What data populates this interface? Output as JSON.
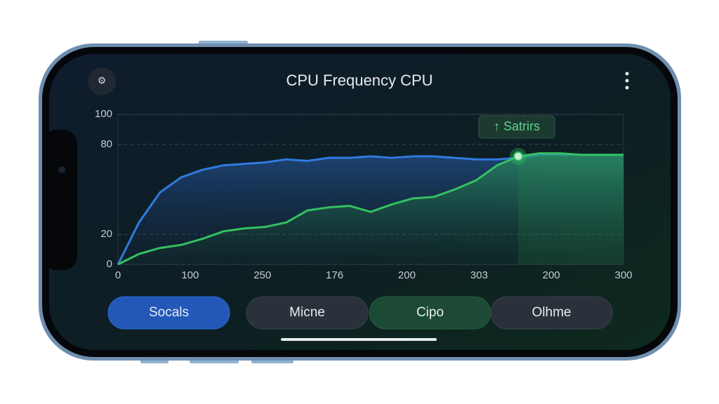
{
  "title": "CPU Frequency CPU",
  "badge": "↑ Satrirs",
  "tabs": [
    "Socals",
    "Micne",
    "Cipo",
    "Olhme"
  ],
  "chart_data": {
    "type": "line",
    "x_tick_labels": [
      "0",
      "100",
      "250",
      "176",
      "200",
      "303",
      "200",
      "300"
    ],
    "ylim": [
      0,
      100
    ],
    "yticks": [
      0,
      20,
      80,
      100
    ],
    "grid": true,
    "highlight_index": 19,
    "series": [
      {
        "name": "blue",
        "color": "#2f7be0",
        "values": [
          0,
          28,
          48,
          58,
          63,
          66,
          67,
          68,
          70,
          69,
          71,
          71,
          72,
          71,
          72,
          72,
          71,
          70,
          70,
          71,
          73,
          73,
          73,
          73,
          73
        ]
      },
      {
        "name": "green",
        "color": "#35c060",
        "values": [
          0,
          7,
          11,
          13,
          17,
          22,
          24,
          25,
          28,
          36,
          38,
          39,
          35,
          40,
          44,
          45,
          50,
          56,
          66,
          72,
          74,
          74,
          73,
          73,
          73
        ]
      }
    ]
  }
}
